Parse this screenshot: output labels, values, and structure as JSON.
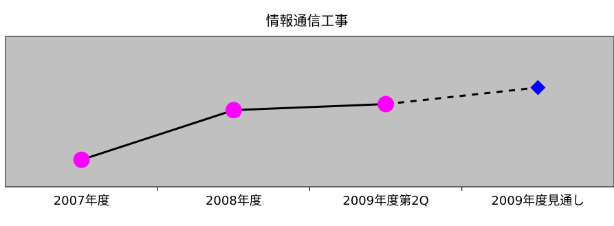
{
  "chart_data": {
    "type": "line",
    "title": "情報通信工事",
    "categories": [
      "2007年度",
      "2008年度",
      "2009年度第2Q",
      "2009年度見通し"
    ],
    "series": [
      {
        "style": "solid",
        "marker": "circle",
        "color": "#ff00ff",
        "values": [
          18,
          51,
          55,
          null
        ]
      },
      {
        "style": "dotted",
        "marker": "diamond",
        "color": "#0000ff",
        "values": [
          null,
          null,
          55,
          66
        ]
      }
    ],
    "ylim": [
      0,
      100
    ],
    "grid": false,
    "legend": "none",
    "plot_background": "#c0c0c0"
  }
}
